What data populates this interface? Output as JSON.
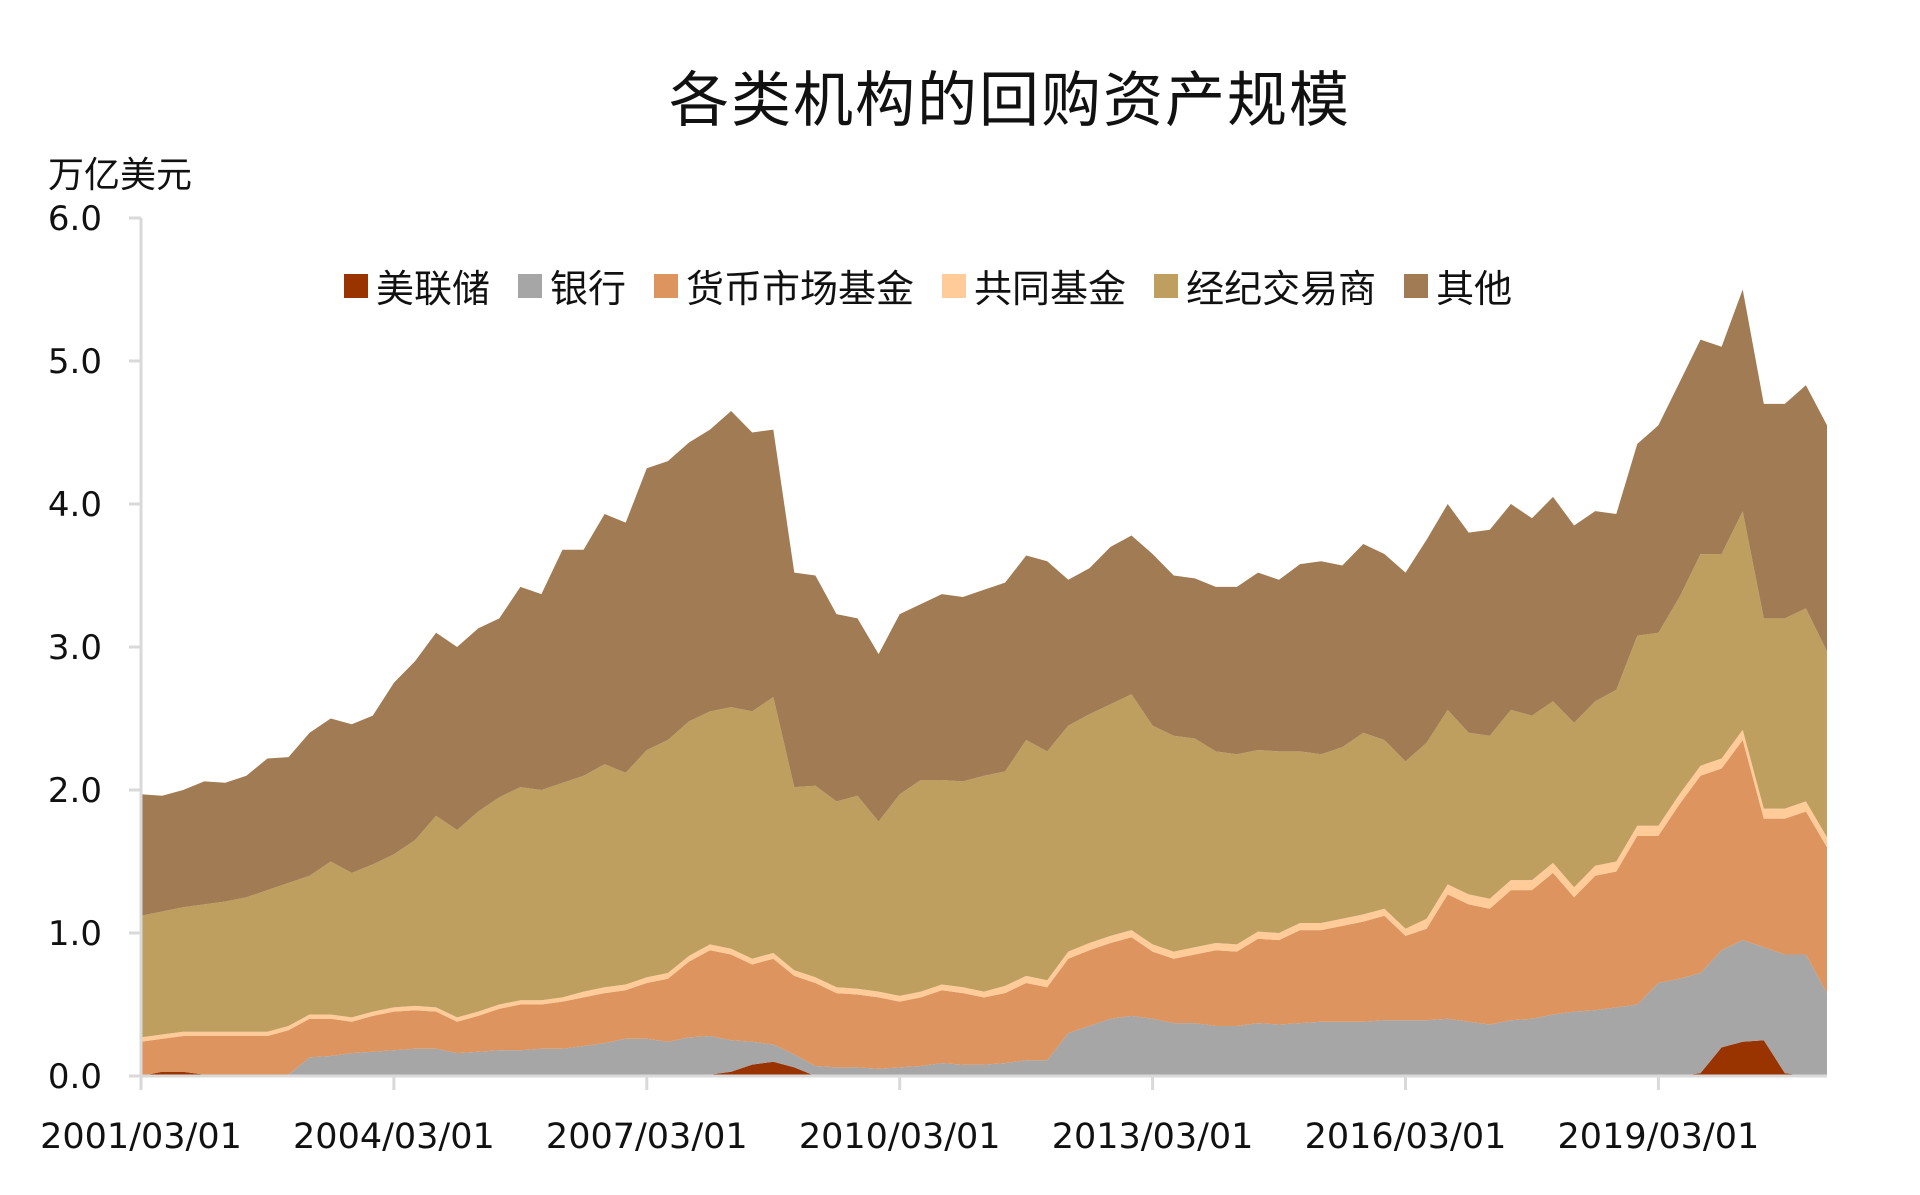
{
  "chart_data": {
    "type": "area",
    "stacked": true,
    "title": "各类机构的回购资产规模",
    "ylabel": "万亿美元",
    "xlabel": "",
    "ylim": [
      0,
      6
    ],
    "y_ticks": [
      "0.0",
      "1.0",
      "2.0",
      "3.0",
      "4.0",
      "5.0",
      "6.0"
    ],
    "x_tick_labels": [
      "2001/03/01",
      "2004/03/01",
      "2007/03/01",
      "2010/03/01",
      "2013/03/01",
      "2016/03/01",
      "2019/03/01"
    ],
    "grid": false,
    "legend_position": "top",
    "x_start": "2001/03/01",
    "x_end": "2021/03/01",
    "x_frequency": "quarterly",
    "series": [
      {
        "name": "美联储",
        "color": "#993300",
        "values": [
          0,
          0.03,
          0.03,
          0.01,
          0.01,
          0.01,
          0.01,
          0.01,
          0.01,
          0.01,
          0.01,
          0.01,
          0.01,
          0.01,
          0.01,
          0.01,
          0.01,
          0.01,
          0.01,
          0.01,
          0.01,
          0.01,
          0.01,
          0.01,
          0.01,
          0.01,
          0.01,
          0.01,
          0.03,
          0.08,
          0.1,
          0.06,
          0,
          0,
          0,
          0,
          0,
          0,
          0,
          0,
          0,
          0,
          0,
          0,
          0,
          0,
          0,
          0,
          0,
          0,
          0,
          0,
          0,
          0,
          0,
          0,
          0,
          0,
          0,
          0,
          0,
          0,
          0,
          0,
          0,
          0,
          0,
          0,
          0,
          0,
          0,
          0,
          0,
          0,
          0.02,
          0.2,
          0.24,
          0.25,
          0.02,
          0,
          0
        ]
      },
      {
        "name": "银行",
        "color": "#a6a6a6",
        "values": [
          0,
          0,
          0,
          0,
          0,
          0,
          0,
          0,
          0.12,
          0.13,
          0.15,
          0.16,
          0.17,
          0.18,
          0.18,
          0.15,
          0.16,
          0.17,
          0.17,
          0.18,
          0.18,
          0.2,
          0.22,
          0.25,
          0.25,
          0.23,
          0.26,
          0.27,
          0.22,
          0.16,
          0.12,
          0.09,
          0.07,
          0.06,
          0.06,
          0.05,
          0.06,
          0.07,
          0.09,
          0.08,
          0.08,
          0.09,
          0.11,
          0.11,
          0.3,
          0.35,
          0.4,
          0.42,
          0.4,
          0.37,
          0.37,
          0.35,
          0.35,
          0.37,
          0.36,
          0.37,
          0.38,
          0.38,
          0.38,
          0.39,
          0.39,
          0.39,
          0.4,
          0.38,
          0.36,
          0.39,
          0.4,
          0.43,
          0.45,
          0.46,
          0.48,
          0.5,
          0.65,
          0.68,
          0.7,
          0.68,
          0.71,
          0.65,
          0.83,
          0.85,
          0.58
        ]
      },
      {
        "name": "货币市场基金",
        "color": "#dd945f",
        "values": [
          0.24,
          0.23,
          0.25,
          0.27,
          0.27,
          0.27,
          0.27,
          0.31,
          0.27,
          0.26,
          0.22,
          0.25,
          0.27,
          0.27,
          0.26,
          0.22,
          0.25,
          0.29,
          0.32,
          0.31,
          0.33,
          0.34,
          0.35,
          0.34,
          0.39,
          0.44,
          0.53,
          0.6,
          0.6,
          0.54,
          0.6,
          0.55,
          0.58,
          0.52,
          0.51,
          0.5,
          0.46,
          0.48,
          0.51,
          0.5,
          0.47,
          0.49,
          0.54,
          0.51,
          0.52,
          0.53,
          0.53,
          0.55,
          0.47,
          0.45,
          0.48,
          0.53,
          0.52,
          0.59,
          0.59,
          0.65,
          0.64,
          0.67,
          0.7,
          0.73,
          0.59,
          0.64,
          0.87,
          0.82,
          0.81,
          0.91,
          0.9,
          0.99,
          0.8,
          0.94,
          0.95,
          1.18,
          1.03,
          1.22,
          1.38,
          1.27,
          1.4,
          0.9,
          0.95,
          1.0,
          1.02
        ]
      },
      {
        "name": "共同基金",
        "color": "#ffcc99",
        "values": [
          0.03,
          0.03,
          0.03,
          0.03,
          0.03,
          0.03,
          0.03,
          0.03,
          0.03,
          0.03,
          0.03,
          0.03,
          0.03,
          0.03,
          0.03,
          0.03,
          0.03,
          0.03,
          0.03,
          0.03,
          0.03,
          0.04,
          0.04,
          0.04,
          0.04,
          0.04,
          0.04,
          0.04,
          0.04,
          0.04,
          0.04,
          0.04,
          0.04,
          0.04,
          0.04,
          0.04,
          0.04,
          0.04,
          0.04,
          0.04,
          0.04,
          0.05,
          0.05,
          0.05,
          0.05,
          0.05,
          0.05,
          0.05,
          0.05,
          0.05,
          0.05,
          0.05,
          0.05,
          0.05,
          0.05,
          0.05,
          0.05,
          0.05,
          0.05,
          0.05,
          0.05,
          0.07,
          0.07,
          0.07,
          0.07,
          0.07,
          0.07,
          0.07,
          0.07,
          0.07,
          0.07,
          0.07,
          0.07,
          0.07,
          0.07,
          0.07,
          0.07,
          0.07,
          0.07,
          0.07,
          0.07
        ]
      },
      {
        "name": "经纪交易商",
        "color": "#bf9f60",
        "values": [
          0.85,
          0.86,
          0.87,
          0.89,
          0.91,
          0.94,
          0.99,
          1.0,
          0.97,
          1.07,
          1.01,
          1.03,
          1.07,
          1.16,
          1.34,
          1.31,
          1.4,
          1.45,
          1.49,
          1.47,
          1.5,
          1.51,
          1.56,
          1.48,
          1.59,
          1.63,
          1.64,
          1.63,
          1.69,
          1.73,
          1.79,
          1.28,
          1.34,
          1.3,
          1.35,
          1.19,
          1.41,
          1.48,
          1.43,
          1.44,
          1.51,
          1.5,
          1.65,
          1.6,
          1.58,
          1.6,
          1.62,
          1.65,
          1.53,
          1.51,
          1.46,
          1.34,
          1.33,
          1.27,
          1.27,
          1.2,
          1.18,
          1.2,
          1.27,
          1.18,
          1.17,
          1.23,
          1.22,
          1.13,
          1.14,
          1.19,
          1.15,
          1.13,
          1.15,
          1.15,
          1.2,
          1.33,
          1.35,
          1.38,
          1.48,
          1.43,
          1.53,
          1.33,
          1.33,
          1.35,
          1.3
        ]
      },
      {
        "name": "其他",
        "color": "#a17b53",
        "values": [
          0.85,
          0.81,
          0.82,
          0.86,
          0.83,
          0.85,
          0.92,
          0.88,
          1.0,
          1.0,
          1.04,
          1.04,
          1.2,
          1.25,
          1.28,
          1.28,
          1.28,
          1.25,
          1.4,
          1.37,
          1.63,
          1.58,
          1.75,
          1.75,
          1.97,
          1.95,
          1.95,
          1.97,
          2.07,
          1.95,
          1.87,
          1.5,
          1.47,
          1.31,
          1.24,
          1.17,
          1.26,
          1.23,
          1.3,
          1.29,
          1.3,
          1.32,
          1.29,
          1.33,
          1.02,
          1.02,
          1.1,
          1.11,
          1.2,
          1.12,
          1.12,
          1.15,
          1.17,
          1.24,
          1.2,
          1.31,
          1.35,
          1.27,
          1.32,
          1.3,
          1.32,
          1.42,
          1.44,
          1.4,
          1.44,
          1.44,
          1.38,
          1.43,
          1.38,
          1.33,
          1.23,
          1.34,
          1.45,
          1.5,
          1.5,
          1.45,
          1.55,
          1.5,
          1.5,
          1.56,
          1.58
        ]
      }
    ]
  }
}
